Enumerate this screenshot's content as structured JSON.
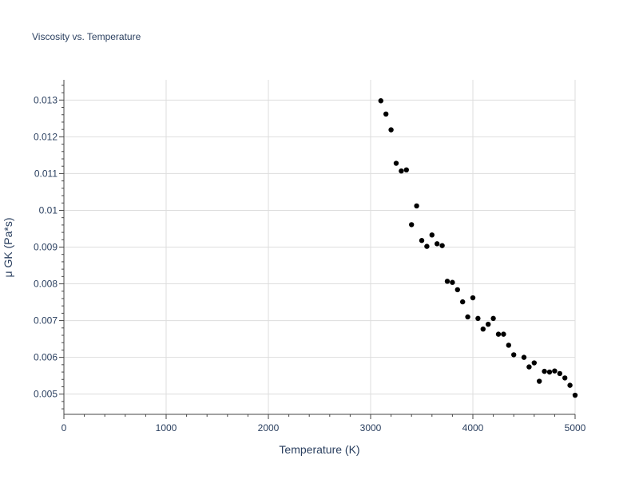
{
  "chart_data": {
    "type": "scatter",
    "title": "Viscosity vs. Temperature",
    "xlabel": "Temperature (K)",
    "ylabel": "μ GK (Pa*s)",
    "xlim": [
      0,
      5000
    ],
    "ylim": [
      0.00445,
      0.01355
    ],
    "xticks": [
      0,
      1000,
      2000,
      3000,
      4000,
      5000
    ],
    "xtick_labels": [
      "0",
      "1000",
      "2000",
      "3000",
      "4000",
      "5000"
    ],
    "yticks": [
      0.005,
      0.006,
      0.007,
      0.008,
      0.009,
      0.01,
      0.011,
      0.012,
      0.013
    ],
    "ytick_labels": [
      "0.005",
      "0.006",
      "0.007",
      "0.008",
      "0.009",
      "0.01",
      "0.011",
      "0.012",
      "0.013"
    ],
    "grid": true,
    "marker_color": "#000000",
    "series": [
      {
        "x": [
          3100,
          3150,
          3200,
          3250,
          3300,
          3350,
          3400,
          3450,
          3500,
          3550,
          3600,
          3650,
          3700,
          3750,
          3800,
          3850,
          3900,
          3950,
          4000,
          4050,
          4100,
          4150,
          4200,
          4250,
          4300,
          4350,
          4400,
          4500,
          4550,
          4600,
          4650,
          4700,
          4750,
          4800,
          4850,
          4900,
          4950,
          5000
        ],
        "y": [
          0.01298,
          0.01262,
          0.01219,
          0.01128,
          0.01107,
          0.0111,
          0.00961,
          0.01012,
          0.00918,
          0.00902,
          0.00933,
          0.00909,
          0.00904,
          0.00807,
          0.00804,
          0.00784,
          0.00751,
          0.0071,
          0.00762,
          0.00706,
          0.00677,
          0.0069,
          0.00706,
          0.00663,
          0.00663,
          0.00633,
          0.00607,
          0.006,
          0.00574,
          0.00585,
          0.00535,
          0.00562,
          0.0056,
          0.00563,
          0.00556,
          0.00544,
          0.00524,
          0.00497
        ]
      }
    ]
  }
}
